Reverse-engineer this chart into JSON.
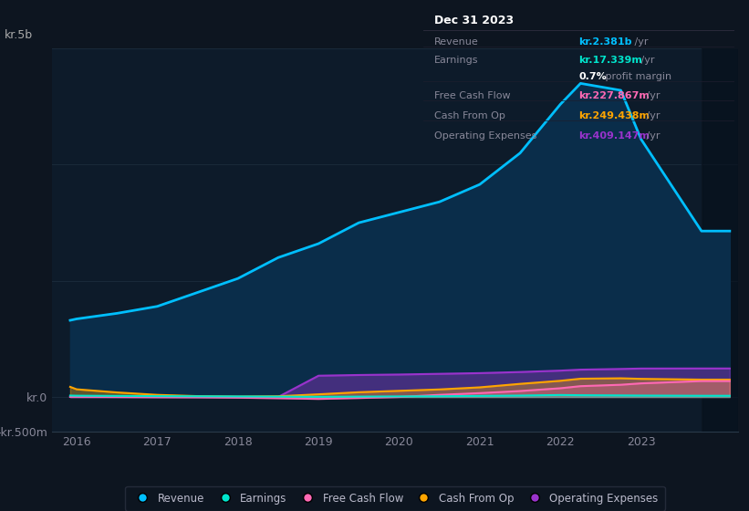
{
  "background_color": "#0d1520",
  "plot_area_color": "#0d1b2a",
  "years": [
    2015.92,
    2016.0,
    2016.5,
    2017.0,
    2017.5,
    2018.0,
    2018.5,
    2019.0,
    2019.5,
    2020.0,
    2020.5,
    2021.0,
    2021.5,
    2022.0,
    2022.25,
    2022.75,
    2023.0,
    2023.75,
    2024.1
  ],
  "revenue": [
    1100,
    1120,
    1200,
    1300,
    1500,
    1700,
    2000,
    2200,
    2500,
    2650,
    2800,
    3050,
    3500,
    4200,
    4500,
    4400,
    3700,
    2381,
    2381
  ],
  "earnings": [
    20,
    18,
    15,
    12,
    10,
    8,
    5,
    2,
    5,
    8,
    10,
    15,
    20,
    28,
    25,
    22,
    20,
    17,
    17
  ],
  "free_cash_flow": [
    2,
    2,
    0,
    -3,
    -5,
    -10,
    -18,
    -28,
    -15,
    0,
    30,
    55,
    85,
    125,
    155,
    175,
    195,
    228,
    228
  ],
  "cash_from_op": [
    145,
    110,
    65,
    30,
    12,
    5,
    10,
    38,
    68,
    88,
    108,
    138,
    188,
    232,
    262,
    268,
    260,
    249,
    249
  ],
  "operating_expenses": [
    0,
    0,
    0,
    0,
    0,
    0,
    0,
    305,
    315,
    322,
    332,
    342,
    358,
    378,
    392,
    402,
    408,
    409,
    409
  ],
  "revenue_color": "#00bfff",
  "earnings_color": "#00e5cc",
  "free_cash_flow_color": "#ff69b4",
  "cash_from_op_color": "#ffa500",
  "operating_expenses_color": "#9933cc",
  "revenue_fill_color": "#0a2d4a",
  "ylim_min": -500,
  "ylim_max": 5000,
  "xlim_min": 2015.7,
  "xlim_max": 2024.2,
  "xlabel_ticks": [
    2016,
    2017,
    2018,
    2019,
    2020,
    2021,
    2022,
    2023
  ],
  "tooltip_title": "Dec 31 2023",
  "tooltip_rows": [
    {
      "label": "Revenue",
      "value": "kr.2.381b",
      "unit": "/yr",
      "color": "#00bfff"
    },
    {
      "label": "Earnings",
      "value": "kr.17.339m",
      "unit": "/yr",
      "color": "#00e5cc"
    },
    {
      "label": "",
      "value": "0.7%",
      "unit": "profit margin",
      "color": "#ffffff"
    },
    {
      "label": "Free Cash Flow",
      "value": "kr.227.867m",
      "unit": "/yr",
      "color": "#ff69b4"
    },
    {
      "label": "Cash From Op",
      "value": "kr.249.438m",
      "unit": "/yr",
      "color": "#ffa500"
    },
    {
      "label": "Operating Expenses",
      "value": "kr.409.147m",
      "unit": "/yr",
      "color": "#9933cc"
    }
  ],
  "legend_items": [
    {
      "label": "Revenue",
      "color": "#00bfff"
    },
    {
      "label": "Earnings",
      "color": "#00e5cc"
    },
    {
      "label": "Free Cash Flow",
      "color": "#ff69b4"
    },
    {
      "label": "Cash From Op",
      "color": "#ffa500"
    },
    {
      "label": "Operating Expenses",
      "color": "#9933cc"
    }
  ]
}
